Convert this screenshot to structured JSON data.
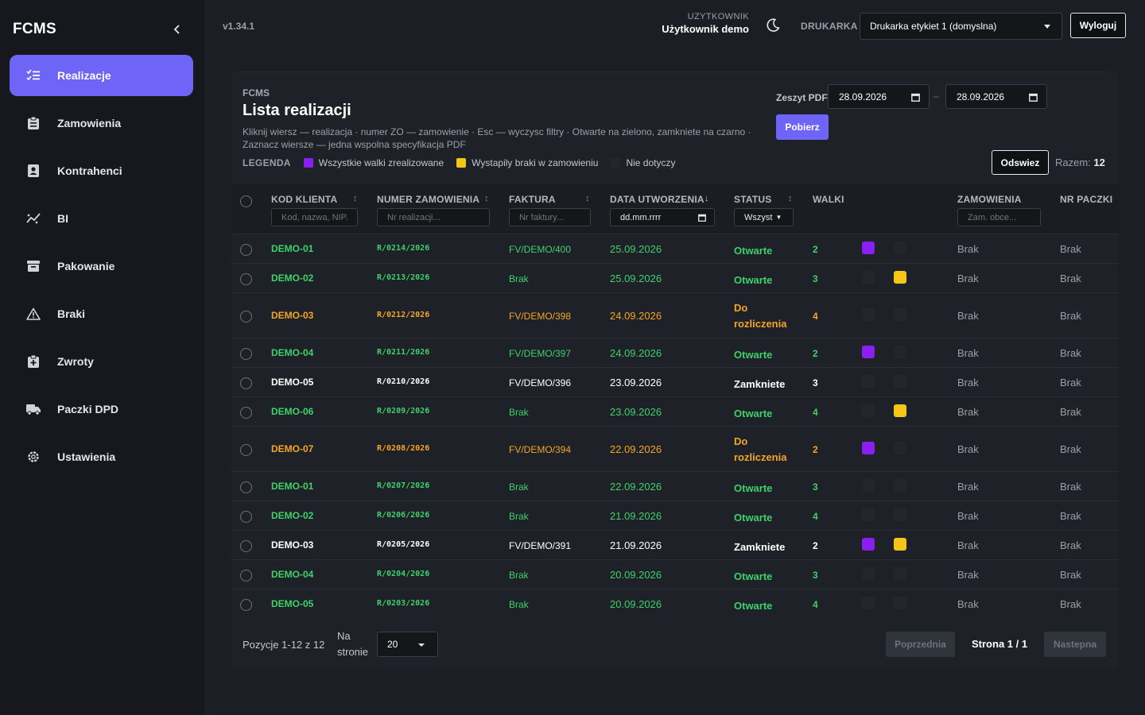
{
  "app": {
    "brand": "FCMS",
    "version": "v1.34.1"
  },
  "sidebar": {
    "items": [
      {
        "label": "Realizacje",
        "icon": "list-check-icon",
        "active": true
      },
      {
        "label": "Zamowienia",
        "icon": "clipboard-icon"
      },
      {
        "label": "Kontrahenci",
        "icon": "contact-card-icon"
      },
      {
        "label": "BI",
        "icon": "analytics-icon"
      },
      {
        "label": "Pakowanie",
        "icon": "archive-box-icon"
      },
      {
        "label": "Braki",
        "icon": "warning-triangle-icon"
      },
      {
        "label": "Zwroty",
        "icon": "return-box-icon"
      },
      {
        "label": "Paczki DPD",
        "icon": "truck-icon"
      },
      {
        "label": "Ustawienia",
        "icon": "gear-icon"
      }
    ]
  },
  "topbar": {
    "user_caption": "UZYTKOWNIK",
    "user_name": "Użytkownik demo",
    "printer_caption": "DRUKARKA",
    "printer_value": "Drukarka etykiet 1 (domyslna)",
    "logout_label": "Wyloguj"
  },
  "panel": {
    "crumb": "FCMS",
    "title": "Lista realizacji",
    "hint": "Kliknij wiersz — realizacja · numer ZO — zamowienie · Esc — wyczysc filtry · Otwarte na zielono, zamkniete na czarno · Zaznacz wiersze — jedna wspolna specyfikacja PDF",
    "legend": {
      "caption": "LEGENDA",
      "items": [
        {
          "label": "Wszystkie walki zrealizowane",
          "color": "#8a1ff0"
        },
        {
          "label": "Wystapily braki w zamowieniu",
          "color": "#f5c518"
        },
        {
          "label": "Nie dotyczy",
          "color": "#23262c"
        }
      ]
    },
    "pdf": {
      "label": "Zeszyt PDF",
      "date_from": "28.09.2026",
      "date_to": "28.09.2026",
      "dash": "–",
      "fetch_label": "Pobierz"
    },
    "refresh_label": "Odswiez",
    "total_label": "Razem:",
    "total_value": "12"
  },
  "table": {
    "columns": {
      "client": "KOD KLIENTA",
      "order": "NUMER ZAMOWIENIA",
      "invoice": "FAKTURA",
      "date": "DATA UTWORZENIA",
      "status": "STATUS",
      "rolls": "WALKI",
      "orders": "ZAMOWIENIA",
      "package": "NR PACZKI"
    },
    "filters": {
      "client_placeholder": "Kod, nazwa, NIP...",
      "order_placeholder": "Nr realizacji...",
      "invoice_placeholder": "Nr faktury...",
      "date_value": "dd.mm.rrrr",
      "status_value": "Wszyst",
      "orders_placeholder": "Zam. obce..."
    },
    "rows": [
      {
        "client": "DEMO-01",
        "order": "R/0214/2026",
        "invoice": "FV/DEMO/400",
        "date": "25.09.2026",
        "status": "Otwarte",
        "rolls": "2",
        "purple": true,
        "yellow": false,
        "orders": "Brak",
        "package": "Brak",
        "tone": "green"
      },
      {
        "client": "DEMO-02",
        "order": "R/0213/2026",
        "invoice": "Brak",
        "date": "25.09.2026",
        "status": "Otwarte",
        "rolls": "3",
        "purple": false,
        "yellow": true,
        "orders": "Brak",
        "package": "Brak",
        "tone": "green"
      },
      {
        "client": "DEMO-03",
        "order": "R/0212/2026",
        "invoice": "FV/DEMO/398",
        "date": "24.09.2026",
        "status": "Do rozliczenia",
        "rolls": "4",
        "purple": false,
        "yellow": false,
        "orders": "Brak",
        "package": "Brak",
        "tone": "orange"
      },
      {
        "client": "DEMO-04",
        "order": "R/0211/2026",
        "invoice": "FV/DEMO/397",
        "date": "24.09.2026",
        "status": "Otwarte",
        "rolls": "2",
        "purple": true,
        "yellow": false,
        "orders": "Brak",
        "package": "Brak",
        "tone": "green"
      },
      {
        "client": "DEMO-05",
        "order": "R/0210/2026",
        "invoice": "FV/DEMO/396",
        "date": "23.09.2026",
        "status": "Zamkniete",
        "rolls": "3",
        "purple": false,
        "yellow": false,
        "orders": "Brak",
        "package": "Brak",
        "tone": "white"
      },
      {
        "client": "DEMO-06",
        "order": "R/0209/2026",
        "invoice": "Brak",
        "date": "23.09.2026",
        "status": "Otwarte",
        "rolls": "4",
        "purple": false,
        "yellow": true,
        "orders": "Brak",
        "package": "Brak",
        "tone": "green"
      },
      {
        "client": "DEMO-07",
        "order": "R/0208/2026",
        "invoice": "FV/DEMO/394",
        "date": "22.09.2026",
        "status": "Do rozliczenia",
        "rolls": "2",
        "purple": true,
        "yellow": false,
        "orders": "Brak",
        "package": "Brak",
        "tone": "orange"
      },
      {
        "client": "DEMO-01",
        "order": "R/0207/2026",
        "invoice": "Brak",
        "date": "22.09.2026",
        "status": "Otwarte",
        "rolls": "3",
        "purple": false,
        "yellow": false,
        "orders": "Brak",
        "package": "Brak",
        "tone": "green"
      },
      {
        "client": "DEMO-02",
        "order": "R/0206/2026",
        "invoice": "Brak",
        "date": "21.09.2026",
        "status": "Otwarte",
        "rolls": "4",
        "purple": false,
        "yellow": false,
        "orders": "Brak",
        "package": "Brak",
        "tone": "green"
      },
      {
        "client": "DEMO-03",
        "order": "R/0205/2026",
        "invoice": "FV/DEMO/391",
        "date": "21.09.2026",
        "status": "Zamkniete",
        "rolls": "2",
        "purple": true,
        "yellow": true,
        "orders": "Brak",
        "package": "Brak",
        "tone": "white"
      },
      {
        "client": "DEMO-04",
        "order": "R/0204/2026",
        "invoice": "Brak",
        "date": "20.09.2026",
        "status": "Otwarte",
        "rolls": "3",
        "purple": false,
        "yellow": false,
        "orders": "Brak",
        "package": "Brak",
        "tone": "green"
      },
      {
        "client": "DEMO-05",
        "order": "R/0203/2026",
        "invoice": "Brak",
        "date": "20.09.2026",
        "status": "Otwarte",
        "rolls": "4",
        "purple": false,
        "yellow": false,
        "orders": "Brak",
        "package": "Brak",
        "tone": "green"
      }
    ]
  },
  "footer": {
    "positions": "Pozycje 1-12 z 12",
    "per_page_label": "Na stronie",
    "per_page_value": "20",
    "prev_label": "Poprzednia",
    "page_info": "Strona 1 / 1",
    "next_label": "Nastepna"
  },
  "colors": {
    "accent": "#6e64f5",
    "open": "#3fd16a",
    "to_settle": "#f5a623",
    "closed": "#ffffff",
    "rolls_done": "#8a1ff0",
    "shortages": "#f5c518",
    "not_applicable": "#23262c"
  }
}
